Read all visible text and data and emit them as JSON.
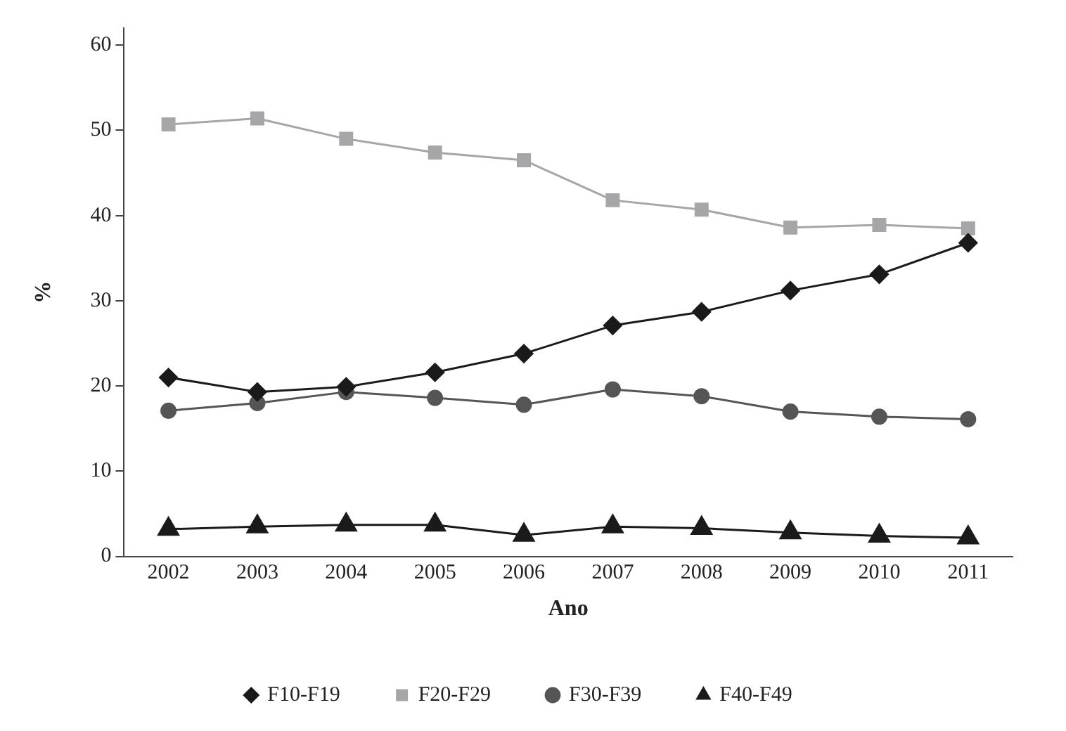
{
  "chart_data": {
    "type": "line",
    "xlabel": "Ano",
    "ylabel": "%",
    "categories": [
      "2002",
      "2003",
      "2004",
      "2005",
      "2006",
      "2007",
      "2008",
      "2009",
      "2010",
      "2011"
    ],
    "series": [
      {
        "name": "F10-F19",
        "color": "#1a1a1a",
        "marker": "diamond",
        "values": [
          21.0,
          19.3,
          19.9,
          21.6,
          23.8,
          27.1,
          28.7,
          31.2,
          33.1,
          36.8
        ]
      },
      {
        "name": "F20-F29",
        "color": "#a6a6a8",
        "marker": "square",
        "values": [
          50.7,
          51.4,
          49.0,
          47.4,
          46.5,
          41.8,
          40.7,
          38.6,
          38.9,
          38.5
        ]
      },
      {
        "name": "F30-F39",
        "color": "#555555",
        "marker": "circle",
        "values": [
          17.1,
          18.0,
          19.3,
          18.6,
          17.8,
          19.6,
          18.8,
          17.0,
          16.4,
          16.1
        ]
      },
      {
        "name": "F40-F49",
        "color": "#1a1a1a",
        "marker": "triangle",
        "values": [
          3.2,
          3.5,
          3.7,
          3.7,
          2.5,
          3.5,
          3.3,
          2.8,
          2.4,
          2.2
        ]
      }
    ],
    "ylim": [
      0,
      62
    ],
    "yticks": [
      0,
      10,
      20,
      30,
      40,
      50,
      60
    ],
    "grid": false,
    "legend": "bottom",
    "line_style": "solid"
  }
}
